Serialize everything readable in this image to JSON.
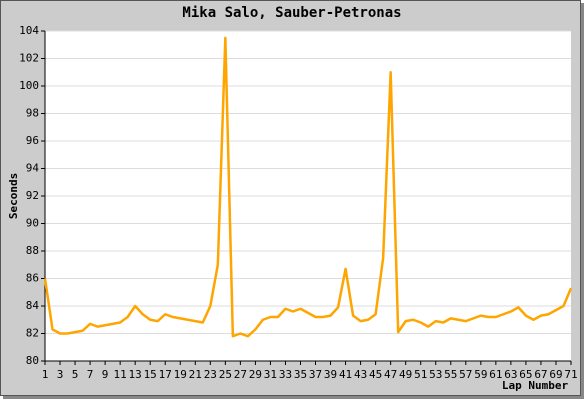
{
  "chart_data": {
    "type": "line",
    "title": "Mika Salo, Sauber-Petronas",
    "xlabel": "Lap Number",
    "ylabel": "Seconds",
    "x": [
      1,
      2,
      3,
      4,
      5,
      6,
      7,
      8,
      9,
      10,
      11,
      12,
      13,
      14,
      15,
      16,
      17,
      18,
      19,
      20,
      21,
      22,
      23,
      24,
      25,
      26,
      27,
      28,
      29,
      30,
      31,
      32,
      33,
      34,
      35,
      36,
      37,
      38,
      39,
      40,
      41,
      42,
      43,
      44,
      45,
      46,
      47,
      48,
      49,
      50,
      51,
      52,
      53,
      54,
      55,
      56,
      57,
      58,
      59,
      60,
      61,
      62,
      63,
      64,
      65,
      66,
      67,
      68,
      69,
      70,
      71
    ],
    "values": [
      86.0,
      82.3,
      82.0,
      82.0,
      82.1,
      82.2,
      82.7,
      82.5,
      82.6,
      82.7,
      82.8,
      83.2,
      84.0,
      83.4,
      83.0,
      82.9,
      83.4,
      83.2,
      83.1,
      83.0,
      82.9,
      82.8,
      84.0,
      87.0,
      103.5,
      81.8,
      82.0,
      81.8,
      82.3,
      83.0,
      83.2,
      83.2,
      83.8,
      83.6,
      83.8,
      83.5,
      83.2,
      83.2,
      83.3,
      83.9,
      86.7,
      83.3,
      82.9,
      83.0,
      83.4,
      87.5,
      101.0,
      82.1,
      82.9,
      83.0,
      82.8,
      82.5,
      82.9,
      82.8,
      83.1,
      83.0,
      82.9,
      83.1,
      83.3,
      83.2,
      83.2,
      83.4,
      83.6,
      83.9,
      83.3,
      83.0,
      83.3,
      83.4,
      83.7,
      84.0,
      85.3
    ],
    "color": "#ffa500",
    "xlim": [
      1,
      71
    ],
    "xticks": [
      1,
      3,
      5,
      7,
      9,
      11,
      13,
      15,
      17,
      19,
      21,
      23,
      25,
      27,
      29,
      31,
      33,
      35,
      37,
      39,
      41,
      43,
      45,
      47,
      49,
      51,
      53,
      55,
      57,
      59,
      61,
      63,
      65,
      67,
      69,
      71
    ],
    "ylim": [
      80,
      104
    ],
    "yticks": [
      80,
      82,
      84,
      86,
      88,
      90,
      92,
      94,
      96,
      98,
      100,
      102,
      104
    ],
    "grid": true
  }
}
